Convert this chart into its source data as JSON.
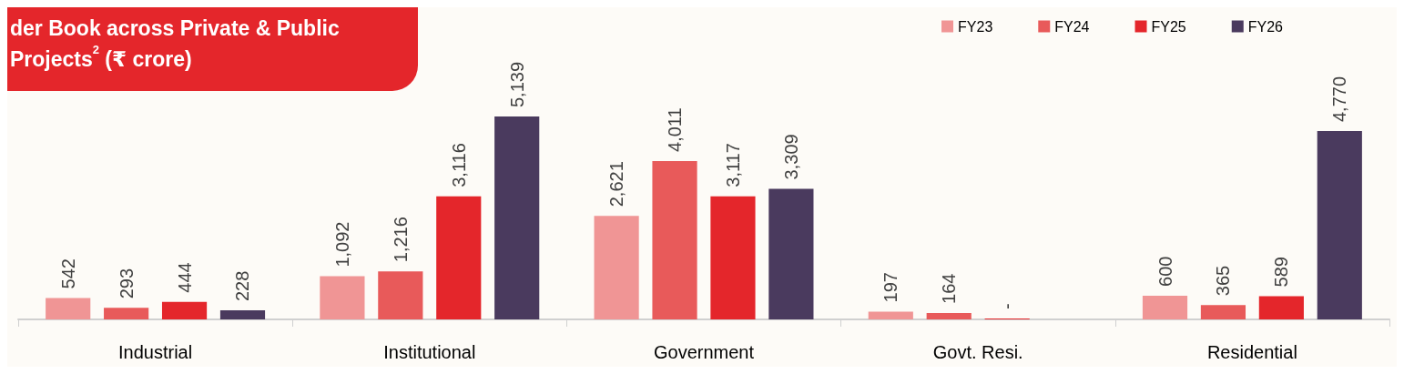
{
  "chart_data": {
    "type": "bar",
    "title": "der Book across Private & Public Projects$^{2}$ (₹ crore)",
    "categories": [
      "Industrial",
      "Institutional",
      "Government",
      "Govt. Resi.",
      "Residential"
    ],
    "series": [
      {
        "name": "FY23",
        "color": "#f09595",
        "values": [
          542,
          1092,
          2621,
          197,
          600
        ],
        "value_labels": [
          "542",
          "1,092",
          "2,621",
          "197",
          "600"
        ]
      },
      {
        "name": "FY24",
        "color": "#e85a5a",
        "values": [
          293,
          1216,
          4011,
          164,
          365
        ],
        "value_labels": [
          "293",
          "1,216",
          "4,011",
          "164",
          "365"
        ]
      },
      {
        "name": "FY25",
        "color": "#e4262b",
        "values": [
          444,
          3116,
          3117,
          0,
          589
        ],
        "value_labels": [
          "444",
          "3,116",
          "3,117",
          "-",
          "589"
        ]
      },
      {
        "name": "FY26",
        "color": "#4a3a5e",
        "values": [
          228,
          5139,
          3309,
          null,
          4770
        ],
        "value_labels": [
          "228",
          "5,139",
          "3,309",
          null,
          "4,770"
        ]
      }
    ],
    "legend": "top right"
  }
}
